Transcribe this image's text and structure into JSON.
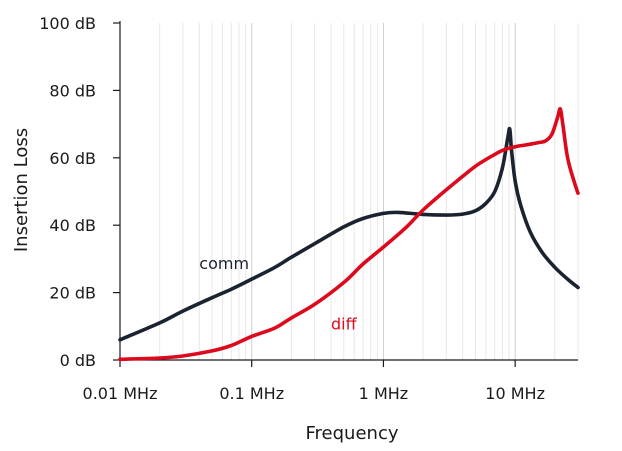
{
  "chart_data": {
    "type": "line",
    "xlabel": "Frequency",
    "ylabel": "Insertion Loss",
    "x_scale": "log",
    "xlim": [
      0.01,
      30
    ],
    "ylim": [
      0,
      100
    ],
    "x_ticks": [
      {
        "value": 0.01,
        "label": "0.01 MHz"
      },
      {
        "value": 0.1,
        "label": "0.1 MHz"
      },
      {
        "value": 1,
        "label": "1 MHz"
      },
      {
        "value": 10,
        "label": "10 MHz"
      }
    ],
    "y_ticks": [
      {
        "value": 0,
        "label": "0 dB"
      },
      {
        "value": 20,
        "label": "20 dB"
      },
      {
        "value": 40,
        "label": "40 dB"
      },
      {
        "value": 60,
        "label": "60 dB"
      },
      {
        "value": 80,
        "label": "80 dB"
      },
      {
        "value": 100,
        "label": "100 dB"
      }
    ],
    "grid": {
      "minor_log_vertical": true,
      "major_vertical": true,
      "horizontal": false
    },
    "series": [
      {
        "name": "comm",
        "color": "#1b2330",
        "points": [
          [
            0.01,
            6
          ],
          [
            0.02,
            11
          ],
          [
            0.03,
            14.5
          ],
          [
            0.05,
            18.5
          ],
          [
            0.07,
            21
          ],
          [
            0.1,
            24
          ],
          [
            0.15,
            27.5
          ],
          [
            0.2,
            30.5
          ],
          [
            0.3,
            34.5
          ],
          [
            0.5,
            39.5
          ],
          [
            0.7,
            42
          ],
          [
            1,
            43.5
          ],
          [
            1.3,
            43.8
          ],
          [
            2,
            43.2
          ],
          [
            3,
            43
          ],
          [
            4,
            43.3
          ],
          [
            5,
            44.3
          ],
          [
            6,
            46.5
          ],
          [
            7,
            50
          ],
          [
            8,
            57
          ],
          [
            8.8,
            66
          ],
          [
            9.1,
            68.5
          ],
          [
            9.4,
            62
          ],
          [
            10,
            53
          ],
          [
            11,
            46
          ],
          [
            13,
            38
          ],
          [
            16,
            32
          ],
          [
            20,
            27.5
          ],
          [
            25,
            24
          ],
          [
            30,
            21.5
          ]
        ]
      },
      {
        "name": "diff",
        "color": "#dd0a1e",
        "points": [
          [
            0.01,
            0.2
          ],
          [
            0.02,
            0.6
          ],
          [
            0.03,
            1.2
          ],
          [
            0.05,
            2.7
          ],
          [
            0.07,
            4.3
          ],
          [
            0.1,
            7
          ],
          [
            0.15,
            9.5
          ],
          [
            0.2,
            12.5
          ],
          [
            0.3,
            16.5
          ],
          [
            0.5,
            23
          ],
          [
            0.7,
            28.5
          ],
          [
            1,
            33.5
          ],
          [
            1.5,
            39.5
          ],
          [
            2,
            44.5
          ],
          [
            3,
            50.5
          ],
          [
            4,
            54.5
          ],
          [
            5,
            57.5
          ],
          [
            6,
            59.5
          ],
          [
            7,
            61
          ],
          [
            8,
            62.2
          ],
          [
            10,
            63.3
          ],
          [
            12,
            63.8
          ],
          [
            15,
            64.5
          ],
          [
            17,
            65
          ],
          [
            19,
            67
          ],
          [
            21,
            72
          ],
          [
            22,
            74.5
          ],
          [
            23,
            70
          ],
          [
            25,
            60
          ],
          [
            28,
            53
          ],
          [
            30,
            49.5
          ]
        ]
      }
    ],
    "annotations": [
      {
        "text": "comm",
        "x": 0.04,
        "y": 27,
        "color": "#1b2330"
      },
      {
        "text": "diff",
        "x": 0.4,
        "y": 9,
        "color": "#dd0a1e"
      }
    ]
  }
}
